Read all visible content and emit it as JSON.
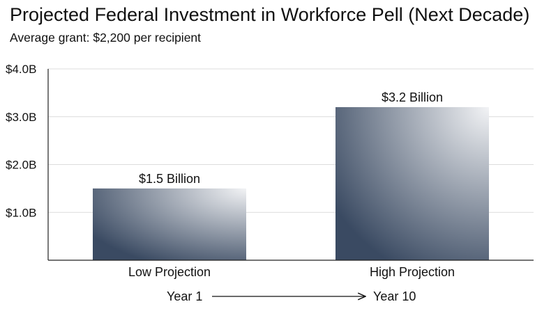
{
  "chart_data": {
    "type": "bar",
    "title": "Projected Federal Investment in Workforce Pell (Next Decade)",
    "subtitle": "Average grant: $2,200 per recipient",
    "categories": [
      "Low Projection",
      "High Projection"
    ],
    "values": [
      1.5,
      3.2
    ],
    "data_labels": [
      "$1.5 Billion",
      "$3.2 Billion"
    ],
    "y_ticks": [
      1.0,
      2.0,
      3.0,
      4.0
    ],
    "y_tick_labels": [
      "$1.0B",
      "$2.0B",
      "$3.0B",
      "$4.0B"
    ],
    "ylim": [
      0,
      4.0
    ],
    "grid": true,
    "legend": "none",
    "bar_color_dark": "#3a4a62",
    "bar_color_light": "#f2f3f5",
    "timeline": {
      "start_label": "Year 1",
      "end_label": "Year 10"
    }
  }
}
